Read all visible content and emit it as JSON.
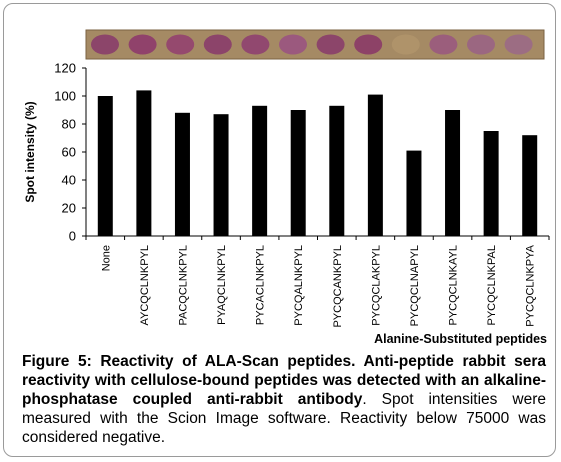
{
  "chart_data": {
    "type": "bar",
    "categories": [
      "None",
      "AYCQCLNKPYL",
      "PACQCLNKPYL",
      "PYAQCLNKPYL",
      "PYCACLNKPYL",
      "PYCQALNKPYL",
      "PYCQCANKPYL",
      "PYCQCLAKPYL",
      "PYCQCLNAPYL",
      "PYCQCLNKAYL",
      "PYCQCLNKPAL",
      "PYCQCLNKPYA"
    ],
    "values": [
      100,
      104,
      88,
      87,
      93,
      90,
      93,
      101,
      61,
      90,
      75,
      72
    ],
    "ylabel": "Spot intensity (%)",
    "xlabel": "Alanine-Substituted  peptides",
    "ylim": [
      0,
      120
    ],
    "yticks": [
      "0",
      "20",
      "40",
      "60",
      "80",
      "100",
      "120"
    ],
    "bar_color": "#000000",
    "grid": false,
    "spot_strip": {
      "background": "#a58a64",
      "spot_colors": [
        "#8a3f6a",
        "#8e3c6b",
        "#94436f",
        "#8a3e6a",
        "#8f4270",
        "#9a5580",
        "#8a3f6a",
        "#8b3c67",
        "#b0946a",
        "#9a5a7e",
        "#9a6483",
        "#9b6a86"
      ]
    }
  },
  "caption": {
    "bold": "Figure 5: Reactivity of ALA-Scan peptides. Anti-peptide rabbit sera reactivity with cellulose-bound peptides was detected with an alkaline-phosphatase coupled anti-rabbit antibody",
    "normal": ". Spot intensities were measured with the Scion Image software. Reactivity below 75000 was considered negative."
  }
}
